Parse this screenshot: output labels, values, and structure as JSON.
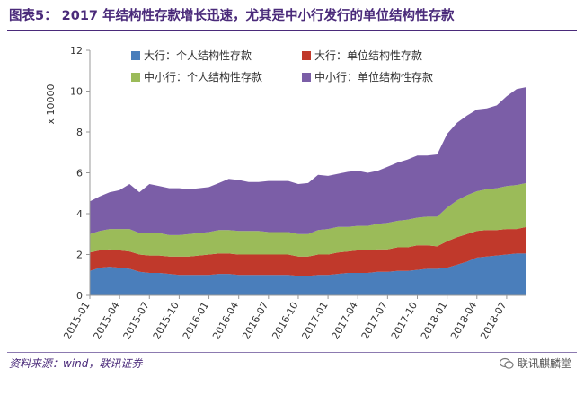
{
  "header": {
    "title": "图表5：  2017 年结构性存款增长迅速，尤其是中小行发行的单位结构性存款"
  },
  "footer": {
    "source": "资料来源：wind，联讯证券",
    "brand": "联讯麒麟堂",
    "brand_icon": "wechat-icon"
  },
  "chart_data": {
    "type": "area",
    "stacked": true,
    "unit_label": "x 10000",
    "ylim": [
      0,
      12
    ],
    "yticks": [
      0,
      2,
      4,
      6,
      8,
      10,
      12
    ],
    "grid": false,
    "legend_position": "top",
    "x": [
      "2015-01",
      "2015-02",
      "2015-03",
      "2015-04",
      "2015-05",
      "2015-06",
      "2015-07",
      "2015-08",
      "2015-09",
      "2015-10",
      "2015-11",
      "2015-12",
      "2016-01",
      "2016-02",
      "2016-03",
      "2016-04",
      "2016-05",
      "2016-06",
      "2016-07",
      "2016-08",
      "2016-09",
      "2016-10",
      "2016-11",
      "2016-12",
      "2017-01",
      "2017-02",
      "2017-03",
      "2017-04",
      "2017-05",
      "2017-06",
      "2017-07",
      "2017-08",
      "2017-09",
      "2017-10",
      "2017-11",
      "2017-12",
      "2018-01",
      "2018-02",
      "2018-03",
      "2018-04",
      "2018-05",
      "2018-06",
      "2018-07",
      "2018-08",
      "2018-09"
    ],
    "xticks": [
      "2015-01",
      "2015-04",
      "2015-07",
      "2015-10",
      "2016-01",
      "2016-04",
      "2016-07",
      "2016-10",
      "2017-01",
      "2017-04",
      "2017-07",
      "2017-10",
      "2018-01",
      "2018-04",
      "2018-07"
    ],
    "series": [
      {
        "name": "大行：个人结构性存款",
        "color": "#4a7ebb",
        "values": [
          1.2,
          1.35,
          1.4,
          1.35,
          1.3,
          1.15,
          1.1,
          1.1,
          1.05,
          1.0,
          1.0,
          1.0,
          1.0,
          1.05,
          1.05,
          1.0,
          1.0,
          1.0,
          1.0,
          1.0,
          1.0,
          0.95,
          0.95,
          1.0,
          1.0,
          1.05,
          1.1,
          1.1,
          1.1,
          1.15,
          1.15,
          1.2,
          1.2,
          1.25,
          1.3,
          1.3,
          1.35,
          1.5,
          1.65,
          1.85,
          1.9,
          1.95,
          2.0,
          2.05,
          2.05
        ]
      },
      {
        "name": "大行：单位结构性存款",
        "color": "#c0392b",
        "values": [
          0.9,
          0.85,
          0.85,
          0.85,
          0.85,
          0.85,
          0.85,
          0.85,
          0.85,
          0.9,
          0.9,
          0.95,
          1.0,
          1.0,
          1.0,
          1.0,
          1.0,
          1.0,
          1.0,
          1.0,
          1.0,
          0.95,
          0.95,
          1.0,
          1.0,
          1.05,
          1.05,
          1.1,
          1.1,
          1.1,
          1.1,
          1.15,
          1.15,
          1.2,
          1.15,
          1.1,
          1.3,
          1.35,
          1.35,
          1.3,
          1.3,
          1.25,
          1.25,
          1.2,
          1.3
        ]
      },
      {
        "name": "中小行：个人结构性存款",
        "color": "#9bbb59",
        "values": [
          0.9,
          0.95,
          1.0,
          1.05,
          1.1,
          1.05,
          1.1,
          1.1,
          1.05,
          1.05,
          1.1,
          1.1,
          1.1,
          1.15,
          1.15,
          1.15,
          1.15,
          1.15,
          1.1,
          1.1,
          1.1,
          1.1,
          1.1,
          1.2,
          1.25,
          1.25,
          1.2,
          1.2,
          1.2,
          1.25,
          1.3,
          1.3,
          1.35,
          1.35,
          1.4,
          1.45,
          1.65,
          1.8,
          1.9,
          1.95,
          2.0,
          2.05,
          2.1,
          2.15,
          2.15
        ]
      },
      {
        "name": "中小行：单位结构性存款",
        "color": "#7b5ea7",
        "values": [
          1.6,
          1.7,
          1.8,
          1.9,
          2.2,
          2.0,
          2.4,
          2.3,
          2.3,
          2.3,
          2.2,
          2.2,
          2.2,
          2.3,
          2.5,
          2.5,
          2.4,
          2.4,
          2.5,
          2.5,
          2.5,
          2.45,
          2.5,
          2.7,
          2.6,
          2.6,
          2.7,
          2.7,
          2.6,
          2.6,
          2.75,
          2.85,
          2.95,
          3.05,
          3.0,
          3.05,
          3.6,
          3.8,
          3.9,
          4.0,
          3.95,
          4.05,
          4.4,
          4.7,
          4.7
        ]
      }
    ]
  }
}
